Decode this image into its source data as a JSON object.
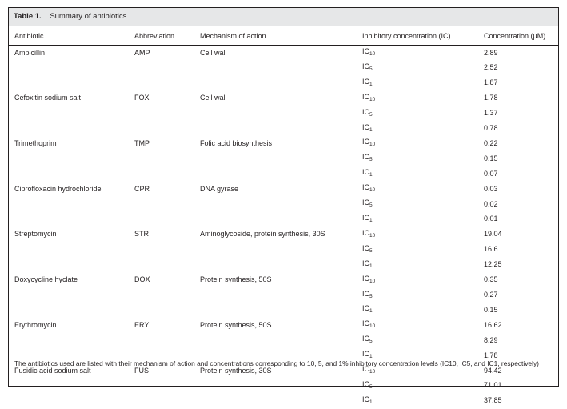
{
  "table": {
    "label": "Table 1.",
    "title": "Summary of antibiotics",
    "headers": [
      "Antibiotic",
      "Abbreviation",
      "Mechanism of action",
      "Inhibitory concentration (IC)",
      "Concentration (μM)"
    ],
    "rows": [
      {
        "name": "Ampicillin",
        "abbr": "AMP",
        "mech": "Cell wall",
        "levels": [
          {
            "ic": "IC",
            "sub": "10",
            "conc": "2.89"
          },
          {
            "ic": "IC",
            "sub": "5",
            "conc": "2.52"
          },
          {
            "ic": "IC",
            "sub": "1",
            "conc": "1.87"
          }
        ]
      },
      {
        "name": "Cefoxitin sodium salt",
        "abbr": "FOX",
        "mech": "Cell wall",
        "levels": [
          {
            "ic": "IC",
            "sub": "10",
            "conc": "1.78"
          },
          {
            "ic": "IC",
            "sub": "5",
            "conc": "1.37"
          },
          {
            "ic": "IC",
            "sub": "1",
            "conc": "0.78"
          }
        ]
      },
      {
        "name": "Trimethoprim",
        "abbr": "TMP",
        "mech": "Folic acid biosynthesis",
        "levels": [
          {
            "ic": "IC",
            "sub": "10",
            "conc": "0.22"
          },
          {
            "ic": "IC",
            "sub": "5",
            "conc": "0.15"
          },
          {
            "ic": "IC",
            "sub": "1",
            "conc": "0.07"
          }
        ]
      },
      {
        "name": "Ciprofloxacin hydrochloride",
        "abbr": "CPR",
        "mech": "DNA gyrase",
        "levels": [
          {
            "ic": "IC",
            "sub": "10",
            "conc": "0.03"
          },
          {
            "ic": "IC",
            "sub": "5",
            "conc": "0.02"
          },
          {
            "ic": "IC",
            "sub": "1",
            "conc": "0.01"
          }
        ]
      },
      {
        "name": "Streptomycin",
        "abbr": "STR",
        "mech": "Aminoglycoside, protein synthesis, 30S",
        "levels": [
          {
            "ic": "IC",
            "sub": "10",
            "conc": "19.04"
          },
          {
            "ic": "IC",
            "sub": "5",
            "conc": "16.6"
          },
          {
            "ic": "IC",
            "sub": "1",
            "conc": "12.25"
          }
        ]
      },
      {
        "name": "Doxycycline hyclate",
        "abbr": "DOX",
        "mech": "Protein synthesis, 50S",
        "levels": [
          {
            "ic": "IC",
            "sub": "10",
            "conc": "0.35"
          },
          {
            "ic": "IC",
            "sub": "5",
            "conc": "0.27"
          },
          {
            "ic": "IC",
            "sub": "1",
            "conc": "0.15"
          }
        ]
      },
      {
        "name": "Erythromycin",
        "abbr": "ERY",
        "mech": "Protein synthesis, 50S",
        "levels": [
          {
            "ic": "IC",
            "sub": "10",
            "conc": "16.62"
          },
          {
            "ic": "IC",
            "sub": "5",
            "conc": "8.29"
          },
          {
            "ic": "IC",
            "sub": "1",
            "conc": "1.78"
          }
        ]
      },
      {
        "name": "Fusidic acid sodium salt",
        "abbr": "FUS",
        "mech": "Protein synthesis, 30S",
        "levels": [
          {
            "ic": "IC",
            "sub": "10",
            "conc": "94.42"
          },
          {
            "ic": "IC",
            "sub": "5",
            "conc": "71.01"
          },
          {
            "ic": "IC",
            "sub": "1",
            "conc": "37.85"
          }
        ]
      }
    ],
    "footnote": "The antibiotics used are listed with their mechanism of action and concentrations corresponding to 10, 5, and 1% inhibitory concentration levels (IC10, IC5, and IC1, respectively)"
  }
}
